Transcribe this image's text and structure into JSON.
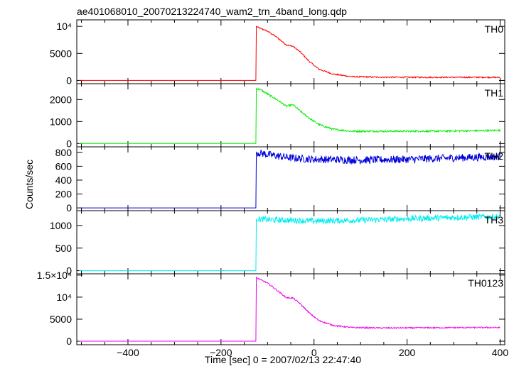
{
  "chart_data": {
    "type": "line",
    "title": "ae401068010_20070213224740_wam2_trn_4band_long.qdp",
    "xlabel": "Time [sec] 0 = 2007/02/13 22:47:40",
    "ylabel": "Counts/sec",
    "xlim": [
      -510,
      410
    ],
    "x_ticks": [
      -400,
      -200,
      0,
      200,
      400
    ],
    "x_tick_labels": [
      "−400",
      "−200",
      "0",
      "200",
      "400"
    ],
    "grid": false,
    "legend": "none",
    "series": [
      {
        "name": "TH0",
        "color": "#ff0000",
        "ylim": [
          -600,
          11200
        ],
        "y_ticks": [
          0,
          5000,
          10000
        ],
        "y_tick_labels": [
          "0",
          "5000",
          "10⁴"
        ],
        "noise": 120,
        "x": [
          -505,
          -125,
          -124,
          -120,
          -100,
          -80,
          -60,
          -45,
          -30,
          -10,
          10,
          40,
          80,
          150,
          250,
          350,
          400
        ],
        "values": [
          0,
          0,
          10000,
          9800,
          9100,
          8000,
          6600,
          6300,
          5300,
          3500,
          2100,
          1200,
          700,
          600,
          580,
          580,
          570
        ]
      },
      {
        "name": "TH1",
        "color": "#00ee00",
        "ylim": [
          -150,
          2720
        ],
        "y_ticks": [
          0,
          1000,
          2000
        ],
        "y_tick_labels": [
          "0",
          "1000",
          "2000"
        ],
        "noise": 40,
        "x": [
          -505,
          -125,
          -124,
          -115,
          -100,
          -80,
          -60,
          -45,
          -30,
          -10,
          10,
          40,
          80,
          150,
          250,
          350,
          400
        ],
        "values": [
          0,
          0,
          2500,
          2450,
          2250,
          2000,
          1700,
          1760,
          1480,
          1150,
          870,
          650,
          560,
          560,
          560,
          580,
          600
        ]
      },
      {
        "name": "TH2",
        "color": "#0000dd",
        "ylim": [
          -40,
          880
        ],
        "y_ticks": [
          0,
          200,
          400,
          600,
          800
        ],
        "y_tick_labels": [
          "0",
          "200",
          "400",
          "600",
          "800"
        ],
        "noise": 55,
        "x": [
          -505,
          -125,
          -124,
          -100,
          -50,
          0,
          100,
          200,
          300,
          400
        ],
        "values": [
          0,
          0,
          800,
          770,
          720,
          700,
          690,
          700,
          720,
          740
        ]
      },
      {
        "name": "TH3",
        "color": "#00eeee",
        "ylim": [
          -70,
          1330
        ],
        "y_ticks": [
          0,
          500,
          1000
        ],
        "y_tick_labels": [
          "0",
          "500",
          "1000"
        ],
        "noise": 65,
        "x": [
          -505,
          -125,
          -124,
          -100,
          0,
          100,
          200,
          300,
          400
        ],
        "values": [
          0,
          0,
          1150,
          1130,
          1100,
          1120,
          1150,
          1180,
          1200
        ]
      },
      {
        "name": "TH0123",
        "color": "#ee00ee",
        "ylim": [
          -800,
          15300
        ],
        "y_ticks": [
          0,
          5000,
          10000,
          15000
        ],
        "y_tick_labels": [
          "0",
          "5000",
          "10⁴",
          "1.5×10⁴"
        ],
        "noise": 150,
        "x": [
          -505,
          -125,
          -124,
          -120,
          -100,
          -80,
          -60,
          -45,
          -30,
          -10,
          10,
          40,
          80,
          150,
          250,
          350,
          400
        ],
        "values": [
          0,
          0,
          14500,
          14200,
          13200,
          11600,
          9900,
          9800,
          8500,
          6400,
          4700,
          3600,
          3100,
          3000,
          3050,
          3100,
          3100
        ]
      }
    ]
  }
}
